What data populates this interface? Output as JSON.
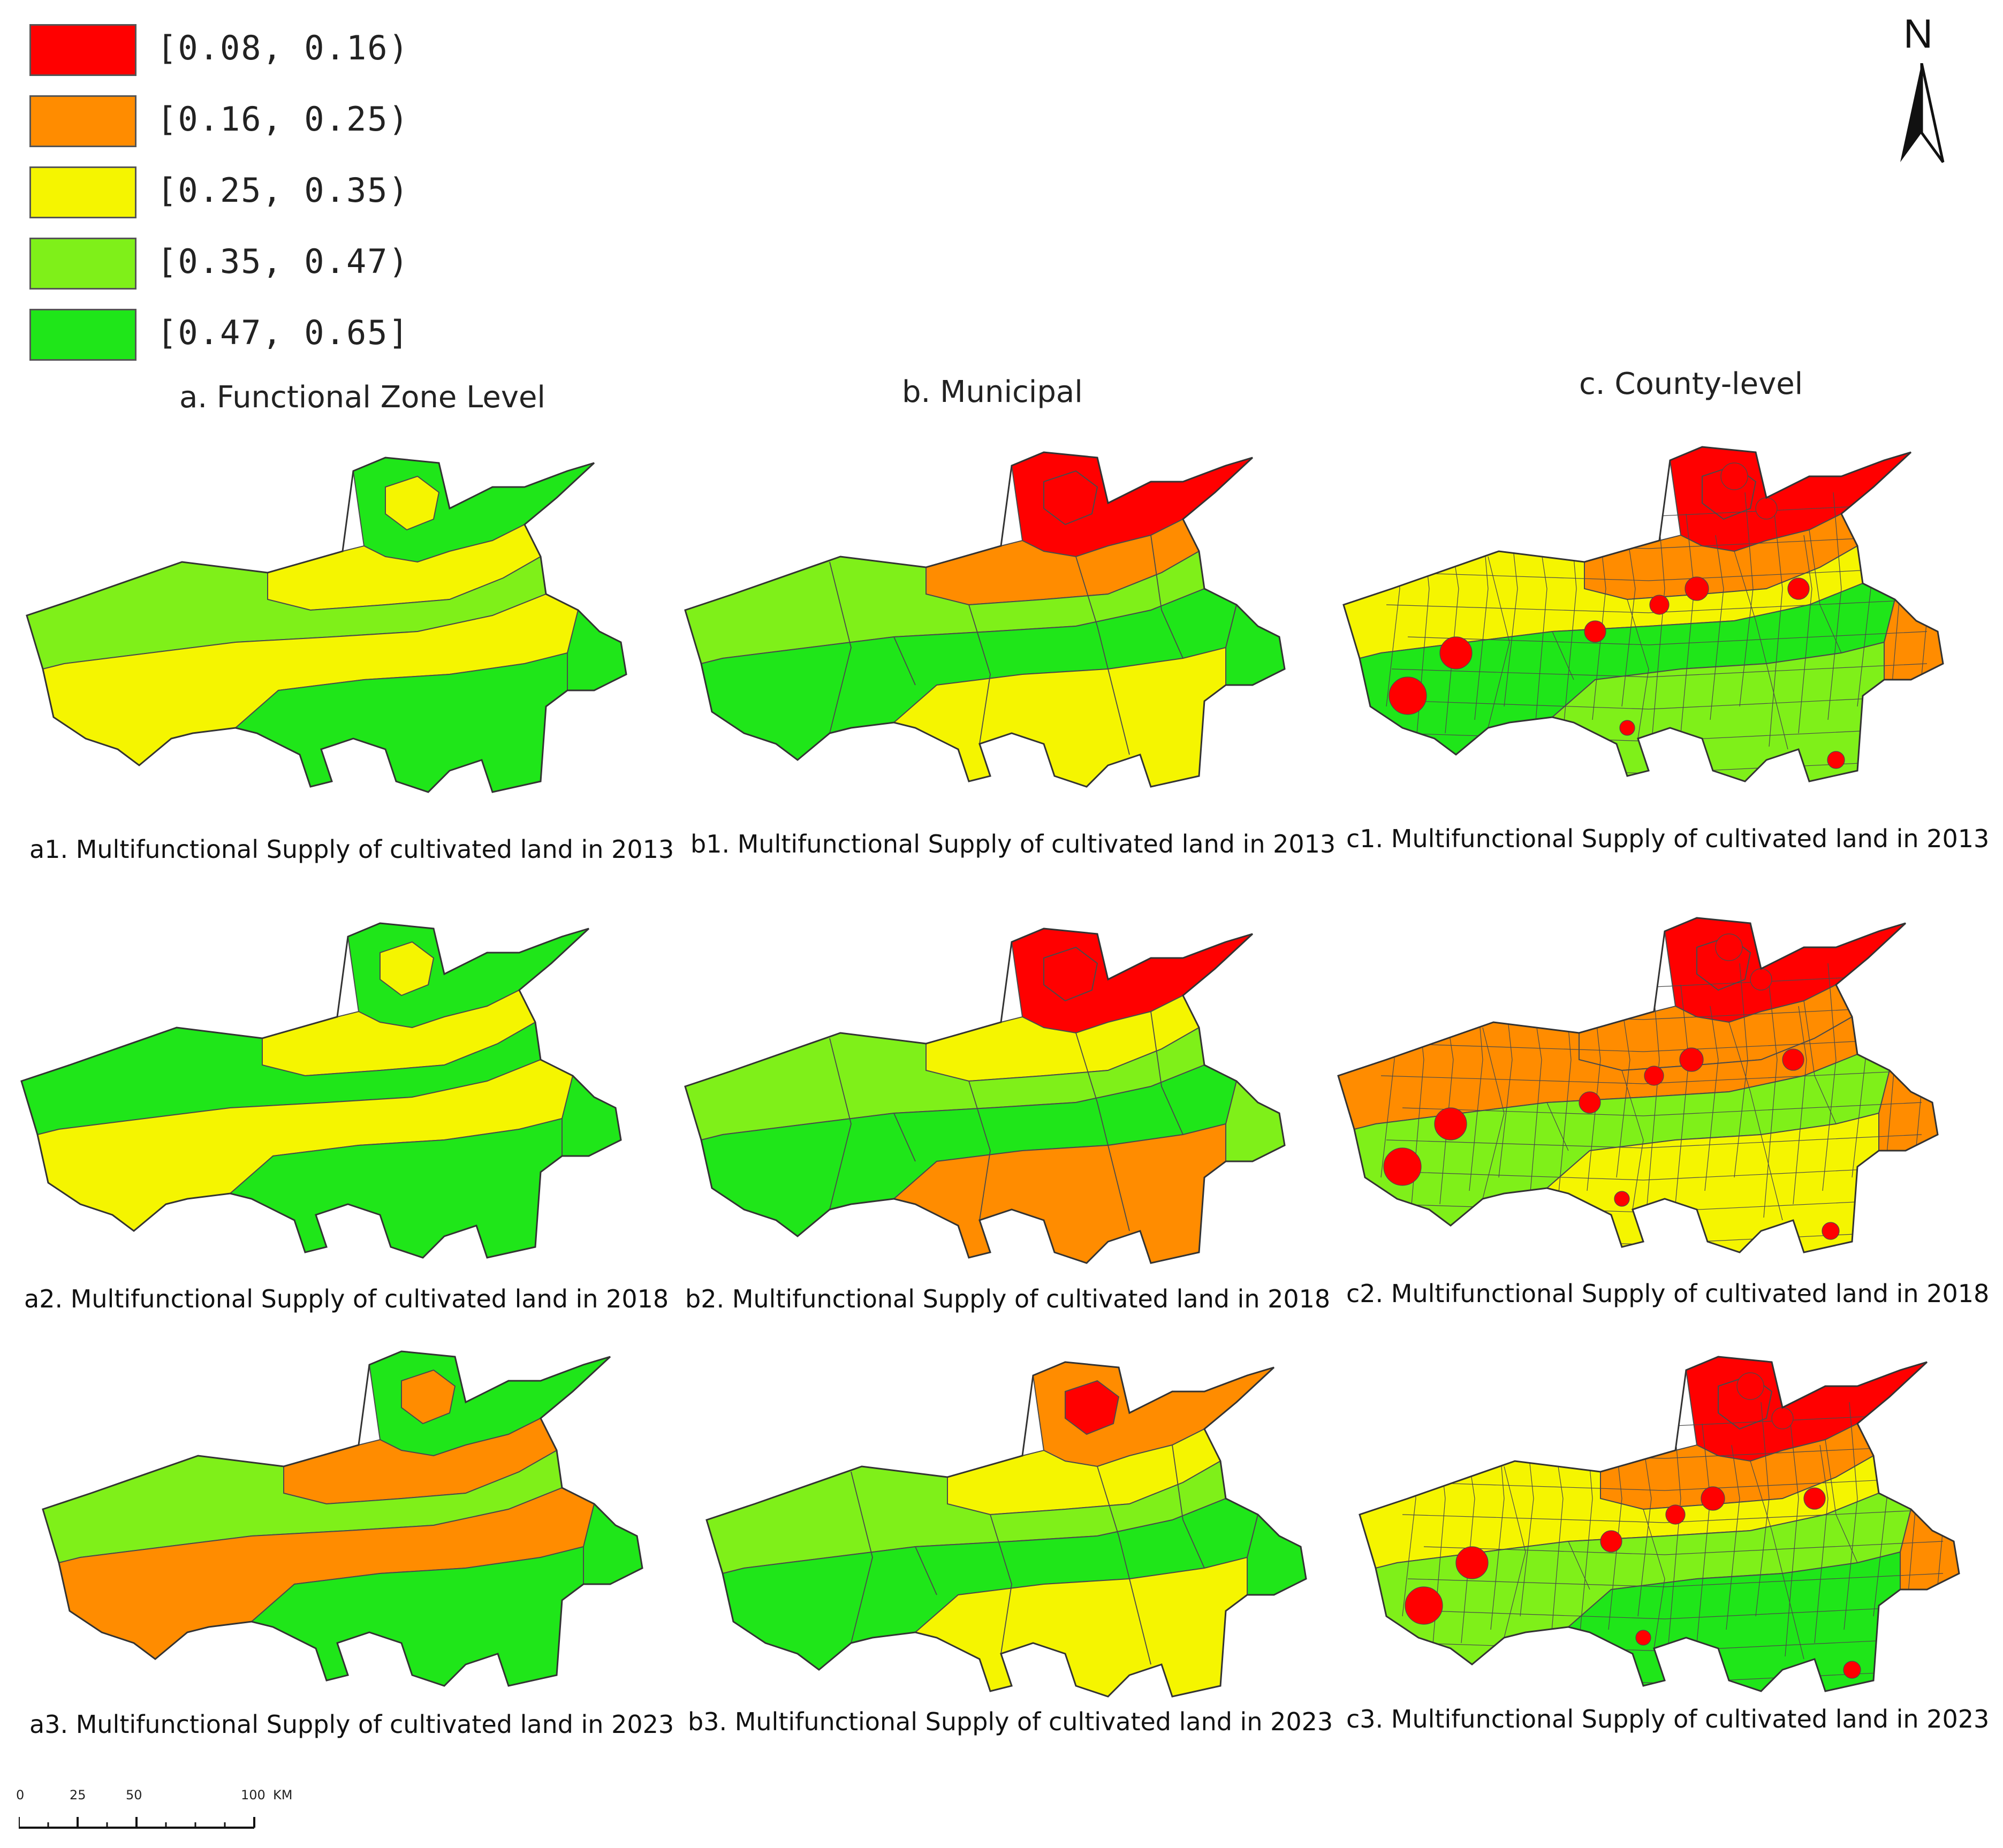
{
  "legend": {
    "items": [
      {
        "label": "[0.08, 0.16)",
        "color": "#ff0000"
      },
      {
        "label": "[0.16, 0.25)",
        "color": "#ff8c00"
      },
      {
        "label": "[0.25, 0.35)",
        "color": "#f5f500"
      },
      {
        "label": "[0.35, 0.47)",
        "color": "#7ff019"
      },
      {
        "label": "[0.47, 0.65]",
        "color": "#1fe619"
      }
    ]
  },
  "north_arrow": {
    "letter": "N",
    "icon": "north-arrow-icon"
  },
  "columns": {
    "a": "a.  Functional Zone Level",
    "b": "b.  Municipal",
    "c": "c.  County-level"
  },
  "maps": [
    {
      "id": "a1",
      "caption": "a1. Multifunctional Supply of cultivated land in 2013",
      "level": "functional-zone",
      "year": "2013",
      "zones": [
        "green",
        "yellow",
        "lightgreen",
        "yellow",
        "green",
        "yellow",
        "green"
      ]
    },
    {
      "id": "b1",
      "caption": "b1. Multifunctional Supply of cultivated land in 2013",
      "level": "municipal",
      "year": "2013",
      "zones": [
        "red",
        "orange",
        "lightgreen",
        "green",
        "yellow",
        "red",
        "green"
      ]
    },
    {
      "id": "c1",
      "caption": "c1. Multifunctional Supply of cultivated land in 2013",
      "level": "county",
      "year": "2013",
      "zones": [
        "red",
        "orange",
        "yellow",
        "green",
        "lightgreen",
        "red",
        "orange"
      ]
    },
    {
      "id": "a2",
      "caption": "a2. Multifunctional Supply of cultivated land in 2018",
      "level": "functional-zone",
      "year": "2018",
      "zones": [
        "green",
        "yellow",
        "green",
        "yellow",
        "green",
        "yellow",
        "green"
      ]
    },
    {
      "id": "b2",
      "caption": "b2. Multifunctional Supply of cultivated land in 2018",
      "level": "municipal",
      "year": "2018",
      "zones": [
        "red",
        "yellow",
        "lightgreen",
        "green",
        "orange",
        "red",
        "lightgreen"
      ]
    },
    {
      "id": "c2",
      "caption": "c2. Multifunctional Supply of cultivated land in 2018",
      "level": "county",
      "year": "2018",
      "zones": [
        "red",
        "orange",
        "orange",
        "lightgreen",
        "yellow",
        "red",
        "orange"
      ]
    },
    {
      "id": "a3",
      "caption": "a3. Multifunctional Supply of cultivated land in 2023",
      "level": "functional-zone",
      "year": "2023",
      "zones": [
        "green",
        "orange",
        "lightgreen",
        "orange",
        "green",
        "orange",
        "green"
      ]
    },
    {
      "id": "b3",
      "caption": "b3. Multifunctional Supply of cultivated land in 2023",
      "level": "municipal",
      "year": "2023",
      "zones": [
        "orange",
        "yellow",
        "lightgreen",
        "green",
        "yellow",
        "red",
        "green"
      ]
    },
    {
      "id": "c3",
      "caption": "c3. Multifunctional Supply of cultivated land in 2023",
      "level": "county",
      "year": "2023",
      "zones": [
        "red",
        "orange",
        "yellow",
        "lightgreen",
        "green",
        "red",
        "orange"
      ]
    }
  ],
  "colors": {
    "red": "#ff0000",
    "orange": "#ff8c00",
    "yellow": "#f5f500",
    "lightgreen": "#7ff019",
    "green": "#1fe619",
    "border": "#4a4a4a"
  },
  "scale_bar": {
    "ticks": [
      "0",
      "25",
      "50",
      "100"
    ],
    "unit": "KM"
  }
}
